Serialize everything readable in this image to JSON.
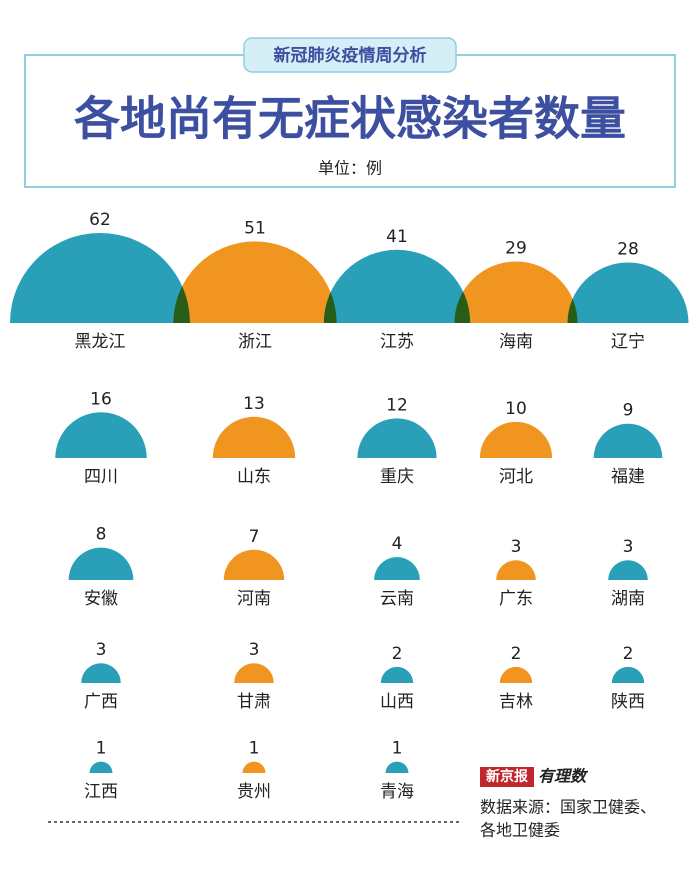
{
  "chart_data": {
    "type": "semicircle",
    "kicker": "新冠肺炎疫情周分析",
    "title": "各地尚有无症状感染者数量",
    "unit": "单位：例",
    "categories": [
      "黑龙江",
      "浙江",
      "江苏",
      "海南",
      "辽宁",
      "四川",
      "山东",
      "重庆",
      "河北",
      "福建",
      "安徽",
      "河南",
      "云南",
      "广东",
      "湖南",
      "广西",
      "甘肃",
      "山西",
      "吉林",
      "陕西",
      "江西",
      "贵州",
      "青海"
    ],
    "values": [
      62,
      51,
      41,
      29,
      28,
      16,
      13,
      12,
      10,
      9,
      8,
      7,
      4,
      3,
      3,
      3,
      3,
      2,
      2,
      2,
      1,
      1,
      1
    ],
    "colors": [
      "#2a9fb8",
      "#f0951f",
      "#2a9fb8",
      "#f0951f",
      "#2a9fb8",
      "#2a9fb8",
      "#f0951f",
      "#2a9fb8",
      "#f0951f",
      "#2a9fb8",
      "#2a9fb8",
      "#f0951f",
      "#2a9fb8",
      "#f0951f",
      "#2a9fb8",
      "#2a9fb8",
      "#f0951f",
      "#2a9fb8",
      "#f0951f",
      "#2a9fb8",
      "#2a9fb8",
      "#f0951f",
      "#2a9fb8"
    ],
    "logo": "新京报",
    "brand": "有理数",
    "source": [
      "数据来源：国家卫健委、",
      "各地卫健委"
    ]
  }
}
